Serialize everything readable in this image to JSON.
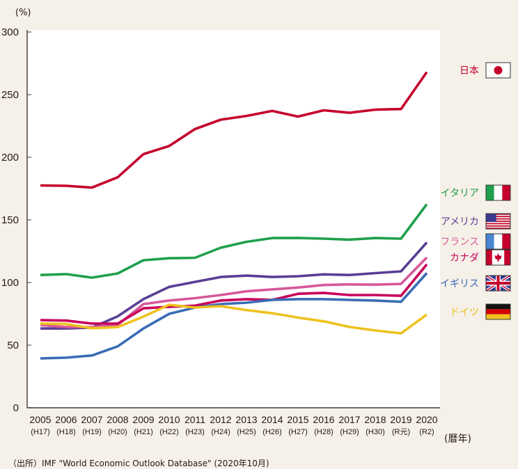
{
  "chart_data": {
    "type": "line",
    "title": "",
    "ylabel": "(%)",
    "xlabel": "(暦年)",
    "ylim": [
      0,
      300
    ],
    "yticks": [
      0,
      50,
      100,
      150,
      200,
      250,
      300
    ],
    "grid": false,
    "legend_position": "right",
    "x": [
      "2005",
      "2006",
      "2007",
      "2008",
      "2009",
      "2010",
      "2011",
      "2012",
      "2013",
      "2014",
      "2015",
      "2016",
      "2017",
      "2018",
      "2019",
      "2020"
    ],
    "x_sublabels": [
      "(H17)",
      "(H18)",
      "(H19)",
      "(H20)",
      "(H21)",
      "(H22)",
      "(H23)",
      "(H24)",
      "(H25)",
      "(H26)",
      "(H27)",
      "(H28)",
      "(H29)",
      "(H30)",
      "(R元)",
      "(R2)"
    ],
    "series": [
      {
        "name": "日本",
        "flag": "japan-flag",
        "color": "#c5002d",
        "values": [
          177.5,
          177.2,
          175.8,
          184.0,
          202.5,
          209.0,
          222.5,
          230.0,
          233.0,
          237.0,
          232.5,
          237.5,
          235.5,
          238.0,
          238.5,
          268.0
        ]
      },
      {
        "name": "イタリア",
        "flag": "italy-flag",
        "color": "#1fa04a",
        "values": [
          106.0,
          106.7,
          103.9,
          107.2,
          117.8,
          119.4,
          119.7,
          127.8,
          132.5,
          135.5,
          135.6,
          135.0,
          134.2,
          135.5,
          135.0,
          162.5
        ]
      },
      {
        "name": "アメリカ",
        "flag": "usa-flag",
        "color": "#5a3e95",
        "values": [
          63.3,
          63.3,
          64.0,
          73.0,
          86.7,
          96.5,
          100.5,
          104.4,
          105.5,
          104.4,
          105.0,
          106.5,
          106.0,
          107.5,
          108.9,
          132.0
        ]
      },
      {
        "name": "フランス",
        "flag": "france-flag",
        "color": "#d6589a",
        "values": [
          66.1,
          64.4,
          64.4,
          66.1,
          82.8,
          85.6,
          87.5,
          90.0,
          93.0,
          94.5,
          96.0,
          98.0,
          98.5,
          98.3,
          98.9,
          120.0
        ]
      },
      {
        "name": "カナダ",
        "flag": "canada-flag",
        "color": "#c7005a",
        "values": [
          70.0,
          69.6,
          67.2,
          67.2,
          79.4,
          80.6,
          81.5,
          85.6,
          86.7,
          86.1,
          91.0,
          91.7,
          90.0,
          90.0,
          89.4,
          114.5
        ]
      },
      {
        "name": "イギリス",
        "flag": "uk-flag",
        "color": "#3a6cb5",
        "values": [
          39.4,
          40.0,
          41.7,
          49.0,
          63.3,
          75.0,
          80.0,
          82.8,
          83.9,
          86.1,
          86.7,
          86.7,
          86.1,
          85.6,
          84.6,
          107.5
        ]
      },
      {
        "name": "ドイツ",
        "flag": "germany-flag",
        "color": "#efc11e",
        "values": [
          67.2,
          66.9,
          63.5,
          64.4,
          72.8,
          82.2,
          80.0,
          81.1,
          78.0,
          75.5,
          72.0,
          69.0,
          64.5,
          61.7,
          59.4,
          74.4
        ]
      }
    ]
  },
  "source_note": "（出所）IMF \"World Economic Outlook Database\" (2020年10月)"
}
